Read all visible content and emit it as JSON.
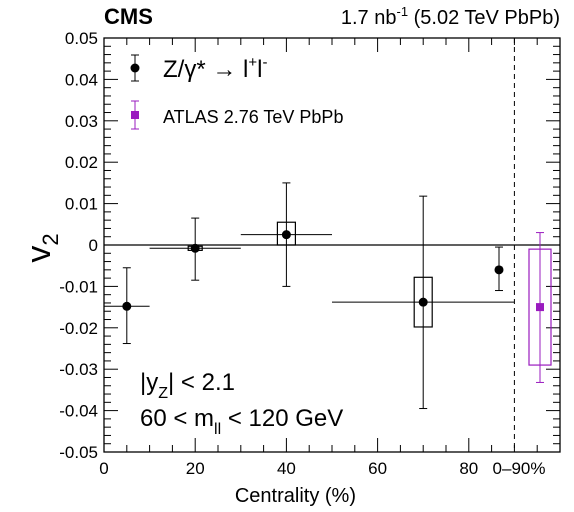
{
  "chart_data": {
    "type": "scatter",
    "header_left": "CMS",
    "header_right": {
      "prefix": "1.7 nb",
      "sup": "-1",
      "suffix": " (5.02 TeV PbPb)"
    },
    "xlabel": "Centrality (%)",
    "ylabel": {
      "main": "v",
      "sub": "2"
    },
    "xlim": [
      0,
      100
    ],
    "ylim": [
      -0.05,
      0.05
    ],
    "x_ticks": [
      "0",
      "20",
      "40",
      "60",
      "80"
    ],
    "x_tick_values": [
      0,
      20,
      40,
      60,
      80
    ],
    "integrated_tick_label": "0–90%",
    "y_ticks": [
      "0.05",
      "0.04",
      "0.03",
      "0.02",
      "0.01",
      "0",
      "-0.01",
      "-0.02",
      "-0.03",
      "-0.04",
      "-0.05"
    ],
    "y_tick_values": [
      0.05,
      0.04,
      0.03,
      0.02,
      0.01,
      0,
      -0.01,
      -0.02,
      -0.03,
      -0.04,
      -0.05
    ],
    "divider_x": 90,
    "legend": [
      {
        "marker": "circle",
        "color": "#000000",
        "label_main": "Z/γ* → l",
        "label_sup1": "+",
        "label_base2": "l",
        "label_sup2": "-"
      },
      {
        "marker": "square",
        "color": "#9a1bbf",
        "label": "ATLAS 2.76 TeV PbPb"
      }
    ],
    "annotations": [
      {
        "prefix": "|y",
        "sub": "Z",
        "suffix": "| < 2.1"
      },
      {
        "prefix": "60 < m",
        "sub": "ll",
        "suffix": " < 120 GeV"
      }
    ],
    "series": [
      {
        "name": "Z/γ* → l+l-",
        "color": "#000000",
        "marker": "circle",
        "points": [
          {
            "x": 5,
            "xlo": 0,
            "xhi": 10,
            "y": -0.0148,
            "stat_lo": -0.0238,
            "stat_hi": -0.0055,
            "sys_lo": -0.0152,
            "sys_hi": -0.0144
          },
          {
            "x": 20,
            "xlo": 10,
            "xhi": 30,
            "y": -0.0008,
            "stat_lo": -0.0085,
            "stat_hi": 0.0065,
            "sys_lo": -0.0013,
            "sys_hi": -0.0003
          },
          {
            "x": 40,
            "xlo": 30,
            "xhi": 50,
            "y": 0.0025,
            "stat_lo": -0.01,
            "stat_hi": 0.015,
            "sys_lo": 0.0,
            "sys_hi": 0.0055
          },
          {
            "x": 70,
            "xlo": 50,
            "xhi": 90,
            "y": -0.0138,
            "stat_lo": -0.0395,
            "stat_hi": 0.0118,
            "sys_lo": -0.0198,
            "sys_hi": -0.0078
          }
        ],
        "integrated": {
          "y": -0.006,
          "stat_lo": -0.011,
          "stat_hi": -0.0005,
          "sys_lo": -0.0064,
          "sys_hi": -0.0056
        }
      },
      {
        "name": "ATLAS 2.76 TeV PbPb",
        "color": "#9a1bbf",
        "marker": "square",
        "integrated": {
          "y": -0.015,
          "stat_lo": -0.0332,
          "stat_hi": 0.003,
          "sys_lo": -0.029,
          "sys_hi": -0.001
        }
      }
    ]
  }
}
